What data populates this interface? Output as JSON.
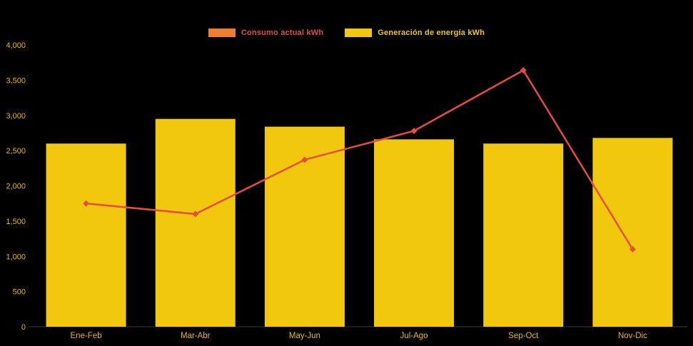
{
  "chart_data": {
    "type": "combo",
    "title": "",
    "categories": [
      "Ene-Feb",
      "Mar-Abr",
      "May-Jun",
      "Jul-Ago",
      "Sep-Oct",
      "Nov-Dic"
    ],
    "series": [
      {
        "name": "Consumo actual kWh",
        "type": "line",
        "color": "#E74C3C",
        "swatch_color": "#ED7D31",
        "values": [
          1750,
          1600,
          2370,
          2780,
          3640,
          1100
        ]
      },
      {
        "name": "Generación de energía kWh",
        "type": "bar",
        "color": "#F2C80F",
        "swatch_color": "#F2C80F",
        "values": [
          2600,
          2950,
          2840,
          2660,
          2600,
          2680
        ]
      }
    ],
    "ylim": [
      0,
      4000
    ],
    "yticks": [
      0,
      500,
      1000,
      1500,
      2000,
      2500,
      3000,
      3500,
      4000
    ],
    "ytick_labels": [
      "0",
      "500",
      "1,000",
      "1,500",
      "2,000",
      "2,500",
      "3,000",
      "3,500",
      "4,000"
    ],
    "grid": false,
    "legend_position": "top-center"
  },
  "colors": {
    "background": "#000000",
    "axis_text": "#E8B80F",
    "axis_line": "#3A3A3A"
  }
}
